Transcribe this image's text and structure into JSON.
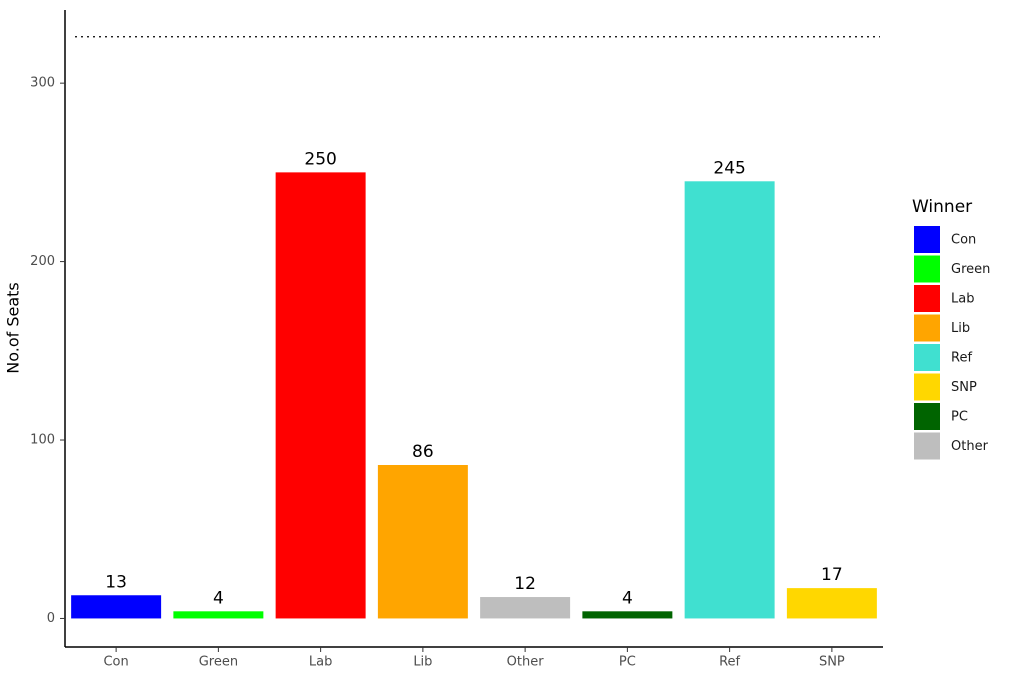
{
  "chart_data": {
    "type": "bar",
    "y_label": "No.of Seats",
    "categories": [
      "Con",
      "Green",
      "Lab",
      "Lib",
      "Other",
      "PC",
      "Ref",
      "SNP"
    ],
    "values": [
      13,
      4,
      250,
      86,
      12,
      4,
      245,
      17
    ],
    "colors": [
      "#0000ff",
      "#00ff00",
      "#ff0000",
      "#ffa500",
      "#bebebe",
      "#006400",
      "#40e0d0",
      "#ffd700"
    ],
    "ylim": [
      -16,
      341
    ],
    "yticks": [
      0,
      100,
      200,
      300
    ],
    "hline": 326,
    "grid": false,
    "legend": {
      "title": "Winner",
      "position": "right",
      "items": [
        {
          "name": "Con",
          "color": "#0000ff"
        },
        {
          "name": "Green",
          "color": "#00ff00"
        },
        {
          "name": "Lab",
          "color": "#ff0000"
        },
        {
          "name": "Lib",
          "color": "#ffa500"
        },
        {
          "name": "Ref",
          "color": "#40e0d0"
        },
        {
          "name": "SNP",
          "color": "#ffd700"
        },
        {
          "name": "PC",
          "color": "#006400"
        },
        {
          "name": "Other",
          "color": "#bebebe"
        }
      ]
    }
  }
}
